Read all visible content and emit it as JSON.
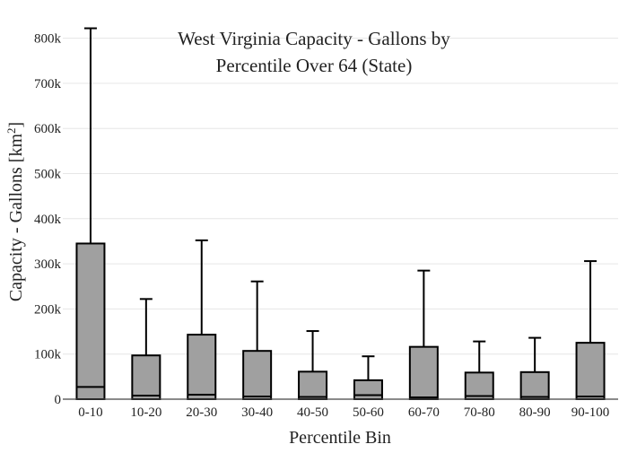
{
  "chart_data": {
    "type": "box",
    "title_lines": [
      "West Virginia Capacity - Gallons by",
      "Percentile Over 64 (State)"
    ],
    "xlabel": "Percentile Bin",
    "ylabel_main": "Capacity - Gallons  [km",
    "ylabel_sup": "2",
    "ylabel_close": "]",
    "ylim": [
      0,
      830000
    ],
    "yticks": [
      0,
      100000,
      200000,
      300000,
      400000,
      500000,
      600000,
      700000,
      800000
    ],
    "ytick_labels": [
      "0",
      "100k",
      "200k",
      "300k",
      "400k",
      "500k",
      "600k",
      "700k",
      "800k"
    ],
    "grid": true,
    "box_color": "#a0a0a0",
    "categories": [
      "0-10",
      "10-20",
      "20-30",
      "30-40",
      "40-50",
      "50-60",
      "60-70",
      "70-80",
      "80-90",
      "90-100"
    ],
    "boxes": [
      {
        "category": "0-10",
        "min": 0,
        "q1": 0,
        "median": 27000,
        "q3": 345000,
        "max": 822000
      },
      {
        "category": "10-20",
        "min": 0,
        "q1": 0,
        "median": 8000,
        "q3": 97000,
        "max": 222000
      },
      {
        "category": "20-30",
        "min": 0,
        "q1": 0,
        "median": 10000,
        "q3": 143000,
        "max": 352000
      },
      {
        "category": "30-40",
        "min": 0,
        "q1": 0,
        "median": 6000,
        "q3": 107000,
        "max": 261000
      },
      {
        "category": "40-50",
        "min": 0,
        "q1": 0,
        "median": 5000,
        "q3": 61000,
        "max": 151000
      },
      {
        "category": "50-60",
        "min": 0,
        "q1": 0,
        "median": 9000,
        "q3": 42000,
        "max": 95000
      },
      {
        "category": "60-70",
        "min": 0,
        "q1": 0,
        "median": 4000,
        "q3": 116000,
        "max": 285000
      },
      {
        "category": "70-80",
        "min": 0,
        "q1": 0,
        "median": 7000,
        "q3": 59000,
        "max": 128000
      },
      {
        "category": "80-90",
        "min": 0,
        "q1": 0,
        "median": 5000,
        "q3": 60000,
        "max": 136000
      },
      {
        "category": "90-100",
        "min": 0,
        "q1": 0,
        "median": 6000,
        "q3": 125000,
        "max": 306000
      }
    ]
  }
}
